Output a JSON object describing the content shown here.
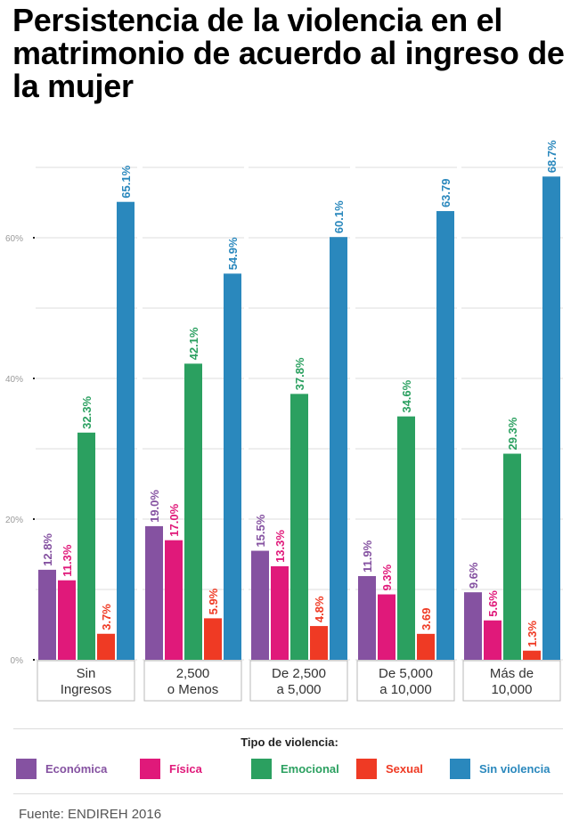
{
  "title": "Persistencia de la violencia en el matrimonio de acuerdo al ingreso de la mujer",
  "legend": {
    "title": "Tipo de violencia:",
    "items": [
      {
        "label": "Económica",
        "color": "#8552a1"
      },
      {
        "label": "Física",
        "color": "#e0197a"
      },
      {
        "label": "Emocional",
        "color": "#2ba060"
      },
      {
        "label": "Sexual",
        "color": "#ef3a24"
      },
      {
        "label": "Sin violencia",
        "color": "#2a88bd"
      }
    ]
  },
  "source": "Fuente: ENDIREH 2016",
  "chart_data": {
    "type": "bar",
    "title": "Persistencia de la violencia en el matrimonio de acuerdo al ingreso de la mujer",
    "xlabel": "",
    "ylabel": "",
    "ylim": [
      0,
      70
    ],
    "yticks": [
      0,
      20,
      40,
      60
    ],
    "ytick_labels": [
      "0%",
      "20%",
      "40%",
      "60%"
    ],
    "minor_gridlines": [
      10,
      30,
      50,
      70
    ],
    "grid": true,
    "legend_position": "bottom",
    "categories": [
      [
        "Sin",
        "Ingresos"
      ],
      [
        "2,500",
        "o Menos"
      ],
      [
        "De 2,500",
        "a 5,000"
      ],
      [
        "De 5,000",
        "a 10,000"
      ],
      [
        "Más de",
        "10,000"
      ]
    ],
    "series": [
      {
        "name": "Económica",
        "color": "#8552a1",
        "values": [
          12.8,
          19.0,
          15.5,
          11.9,
          9.6
        ],
        "labels": [
          "12.8%",
          "19.0%",
          "15.5%",
          "11.9%",
          "9.6%"
        ]
      },
      {
        "name": "Física",
        "color": "#e0197a",
        "values": [
          11.3,
          17.0,
          13.3,
          9.3,
          5.6
        ],
        "labels": [
          "11.3%",
          "17.0%",
          "13.3%",
          "9.3%",
          "5.6%"
        ]
      },
      {
        "name": "Emocional",
        "color": "#2ba060",
        "values": [
          32.3,
          42.1,
          37.8,
          34.6,
          29.3
        ],
        "labels": [
          "32.3%",
          "42.1%",
          "37.8%",
          "34.6%",
          "29.3%"
        ]
      },
      {
        "name": "Sexual",
        "color": "#ef3a24",
        "values": [
          3.7,
          5.9,
          4.8,
          3.69,
          1.3
        ],
        "labels": [
          "3.7%",
          "5.9%",
          "4.8%",
          "3.69",
          "1.3%"
        ]
      },
      {
        "name": "Sin violencia",
        "color": "#2a88bd",
        "values": [
          65.1,
          54.9,
          60.1,
          63.79,
          68.7
        ],
        "labels": [
          "65.1%",
          "54.9%",
          "60.1%",
          "63.79",
          "68.7%"
        ]
      }
    ]
  }
}
